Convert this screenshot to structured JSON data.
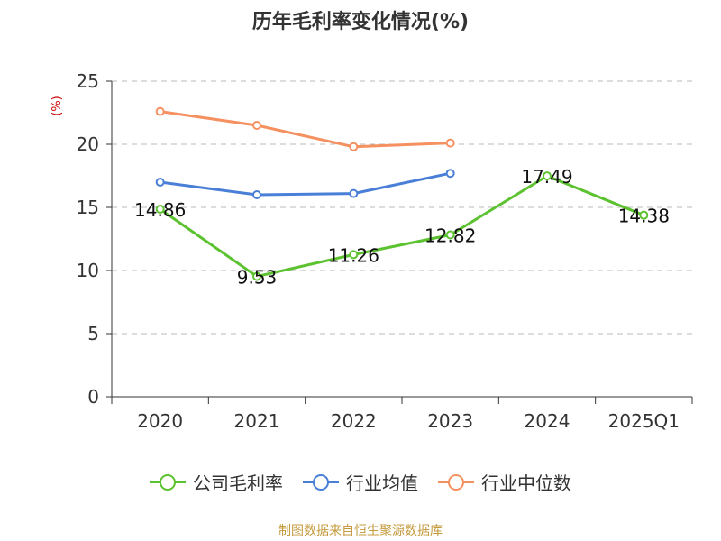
{
  "chart_data": {
    "type": "line",
    "title": "历年毛利率变化情况(%)",
    "ylabel": "(%)",
    "categories": [
      "2020",
      "2021",
      "2022",
      "2023",
      "2024",
      "2025Q1"
    ],
    "ylim": [
      0,
      25
    ],
    "yticks": [
      0,
      5,
      10,
      15,
      20,
      25
    ],
    "grid": true,
    "legend_position": "bottom",
    "series": [
      {
        "name": "公司毛利率",
        "color": "#5cc22f",
        "values": [
          14.86,
          9.53,
          11.26,
          12.82,
          17.49,
          14.38
        ],
        "labels": [
          "14.86",
          "9.53",
          "11.26",
          "12.82",
          "17.49",
          "14.38"
        ]
      },
      {
        "name": "行业均值",
        "color": "#4a7fd8",
        "values": [
          17.0,
          16.0,
          16.1,
          17.7,
          null,
          null
        ]
      },
      {
        "name": "行业中位数",
        "color": "#f59060",
        "values": [
          22.6,
          21.5,
          19.8,
          20.1,
          null,
          null
        ]
      }
    ]
  },
  "footer": "制图数据来自恒生聚源数据库"
}
